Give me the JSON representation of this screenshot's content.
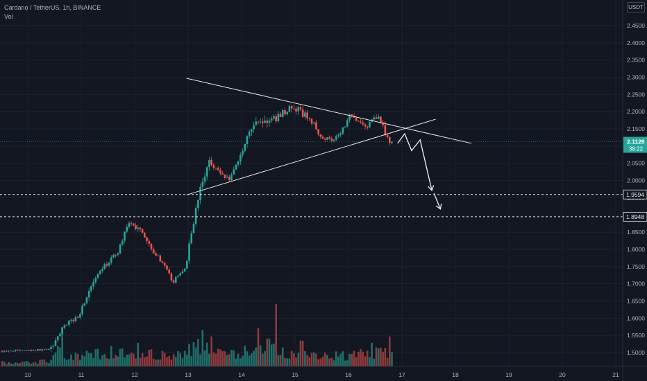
{
  "header": {
    "symbol_line": "Cardano / TetherUS, 1h, BINANCE",
    "indicator": "Vol",
    "currency": "USDT"
  },
  "colors": {
    "background": "#131722",
    "grid": "#1e222d",
    "up": "#26a69a",
    "down": "#ef5350",
    "up_volume": "#1f6f69",
    "down_volume": "#8e3a3d",
    "axis_text": "#b2b5be",
    "drawing": "#e8e8e8",
    "price_badge": "#26a69a"
  },
  "chart_data": {
    "type": "candlestick",
    "title": "Cardano / TetherUS, 1h, BINANCE",
    "xlabel": "",
    "ylabel": "",
    "x_ticks": [
      "10",
      "11",
      "12",
      "13",
      "14",
      "15",
      "16",
      "17",
      "18",
      "19",
      "20",
      "21"
    ],
    "y_ticks": [
      "2.4500",
      "2.4000",
      "2.3500",
      "2.3000",
      "2.2500",
      "2.2000",
      "2.1500",
      "2.1000",
      "2.0500",
      "2.0000",
      "1.9500",
      "1.9000",
      "1.8500",
      "1.8000",
      "1.7500",
      "1.7000",
      "1.6500",
      "1.6000",
      "1.5500",
      "1.5000"
    ],
    "ylim": [
      1.47,
      2.5
    ],
    "xlim_days": [
      9.5,
      21.3
    ],
    "grid": true,
    "last_price": {
      "value": 2.1128,
      "label": "2.1128",
      "countdown": "38:22"
    },
    "levels": [
      {
        "value": 1.9594,
        "label": "1.9594",
        "style": "dashed"
      },
      {
        "value": 1.8948,
        "label": "1.8948",
        "style": "dashed"
      }
    ],
    "trendlines": [
      {
        "name": "descending-resistance",
        "from": [
          12.97,
          2.297
        ],
        "to": [
          18.3,
          2.108
        ]
      },
      {
        "name": "ascending-support",
        "from": [
          12.97,
          1.958
        ],
        "to": [
          17.63,
          2.178
        ]
      }
    ],
    "projection_path": [
      [
        16.92,
        2.108
      ],
      [
        17.05,
        2.136
      ],
      [
        17.18,
        2.087
      ],
      [
        17.34,
        2.118
      ],
      [
        17.56,
        1.971
      ],
      [
        17.72,
        1.917
      ]
    ],
    "anchors": [
      [
        9.5,
        1.505,
        0.12
      ],
      [
        10.3,
        1.508,
        0.12
      ],
      [
        10.5,
        1.52,
        0.45
      ],
      [
        10.65,
        1.575,
        0.3
      ],
      [
        10.95,
        1.607,
        0.35
      ],
      [
        11.15,
        1.68,
        0.45
      ],
      [
        11.4,
        1.745,
        0.3
      ],
      [
        11.7,
        1.795,
        0.3
      ],
      [
        11.85,
        1.87,
        0.38
      ],
      [
        12.1,
        1.862,
        0.38
      ],
      [
        12.35,
        1.795,
        0.3
      ],
      [
        12.5,
        1.765,
        0.25
      ],
      [
        12.72,
        1.705,
        0.28
      ],
      [
        12.95,
        1.748,
        0.3
      ],
      [
        13.08,
        1.865,
        0.4
      ],
      [
        13.22,
        1.97,
        0.55
      ],
      [
        13.4,
        2.06,
        0.45
      ],
      [
        13.55,
        2.03,
        0.4
      ],
      [
        13.75,
        2.002,
        0.35
      ],
      [
        13.95,
        2.06,
        0.45
      ],
      [
        14.1,
        2.13,
        0.5
      ],
      [
        14.3,
        2.175,
        0.55
      ],
      [
        14.55,
        2.17,
        0.7
      ],
      [
        14.75,
        2.195,
        0.45
      ],
      [
        14.9,
        2.21,
        0.5
      ],
      [
        15.1,
        2.2,
        0.55
      ],
      [
        15.3,
        2.175,
        0.4
      ],
      [
        15.5,
        2.125,
        0.3
      ],
      [
        15.7,
        2.12,
        0.3
      ],
      [
        15.85,
        2.14,
        0.3
      ],
      [
        16.05,
        2.195,
        0.4
      ],
      [
        16.2,
        2.17,
        0.35
      ],
      [
        16.35,
        2.155,
        0.35
      ],
      [
        16.5,
        2.19,
        0.4
      ],
      [
        16.62,
        2.165,
        0.45
      ],
      [
        16.72,
        2.12,
        0.55
      ],
      [
        16.82,
        2.113,
        0.35
      ]
    ],
    "volume_anchors": [
      [
        9.5,
        0.1
      ],
      [
        10.4,
        0.12
      ],
      [
        10.55,
        0.35
      ],
      [
        10.9,
        0.25
      ],
      [
        11.2,
        0.3
      ],
      [
        11.6,
        0.3
      ],
      [
        12.0,
        0.35
      ],
      [
        12.4,
        0.28
      ],
      [
        12.8,
        0.25
      ],
      [
        13.2,
        0.5
      ],
      [
        13.6,
        0.3
      ],
      [
        14.0,
        0.35
      ],
      [
        14.4,
        0.4
      ],
      [
        14.6,
        0.55
      ],
      [
        14.8,
        0.3
      ],
      [
        15.3,
        0.28
      ],
      [
        15.8,
        0.25
      ],
      [
        16.3,
        0.3
      ],
      [
        16.82,
        0.4
      ]
    ],
    "volume_spikes": [
      [
        10.66,
        0.92
      ],
      [
        11.55,
        0.48
      ],
      [
        12.05,
        0.55
      ],
      [
        13.28,
        0.85
      ],
      [
        13.42,
        0.7
      ],
      [
        14.3,
        0.9
      ],
      [
        14.5,
        0.65
      ],
      [
        14.63,
        1.45
      ],
      [
        15.12,
        0.6
      ],
      [
        16.45,
        0.55
      ],
      [
        16.76,
        0.7
      ]
    ]
  }
}
